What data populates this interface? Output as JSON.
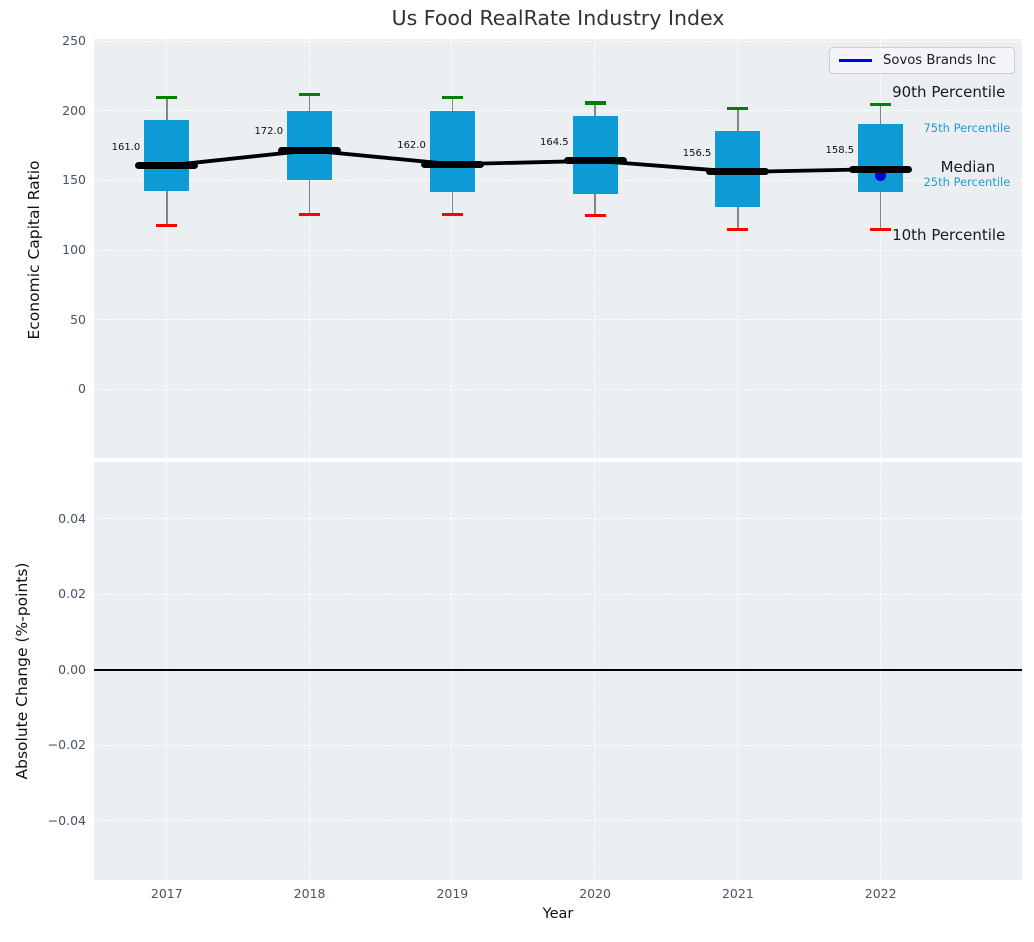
{
  "figure": {
    "title": "Us Food RealRate Industry Index"
  },
  "chart_data": [
    {
      "type": "boxplot",
      "panel": "top",
      "title": "Us Food RealRate Industry Index",
      "ylabel": "Economic Capital Ratio",
      "xlabel": "Year",
      "grid": "white-dashed",
      "legend_position": "upper right",
      "xlim": [
        2016.49,
        2022.99
      ],
      "ylim": [
        -49,
        252
      ],
      "yticks": [
        250,
        200,
        150,
        100,
        50,
        0
      ],
      "ytick_labels": [
        "250",
        "200",
        "150",
        "100",
        "50",
        "0"
      ],
      "years": [
        2017,
        2018,
        2019,
        2020,
        2021,
        2022
      ],
      "year_labels": [
        "2017",
        "2018",
        "2019",
        "2020",
        "2021",
        "2022"
      ],
      "boxes": [
        {
          "year": 2017,
          "p10": 118,
          "p25": 143,
          "median": 161.0,
          "p75": 194,
          "p90": 210,
          "median_label": "161.0"
        },
        {
          "year": 2018,
          "p10": 126,
          "p25": 151,
          "median": 172.0,
          "p75": 200,
          "p90": 212,
          "median_label": "172.0"
        },
        {
          "year": 2019,
          "p10": 126,
          "p25": 142,
          "median": 162.0,
          "p75": 200,
          "p90": 210,
          "median_label": "162.0"
        },
        {
          "year": 2020,
          "p10": 125,
          "p25": 141,
          "median": 164.5,
          "p75": 197,
          "p90": 206,
          "median_label": "164.5"
        },
        {
          "year": 2021,
          "p10": 115,
          "p25": 131,
          "median": 156.5,
          "p75": 186,
          "p90": 202,
          "median_label": "156.5"
        },
        {
          "year": 2022,
          "p10": 115,
          "p25": 142,
          "median": 158.5,
          "p75": 191,
          "p90": 205,
          "median_label": "158.5"
        }
      ],
      "legend": {
        "label": "Sovos Brands Inc",
        "line_color": "#0000ee"
      },
      "company_point": {
        "name": "Sovos Brands Inc",
        "year": 2022,
        "value": 154,
        "color": "#0000cc"
      },
      "annotations": [
        {
          "text": "90th Percentile",
          "year": 2022.08,
          "value": 214,
          "color": "#1a1a1a",
          "size": 15
        },
        {
          "text": "75th Percentile",
          "year": 2022.3,
          "value": 188,
          "color": "#1e9bd4",
          "size": 11.5
        },
        {
          "text": "Median",
          "year": 2022.42,
          "value": 160,
          "color": "#1a1a1a",
          "size": 15
        },
        {
          "text": "25th Percentile",
          "year": 2022.3,
          "value": 149,
          "color": "#1e9bd4",
          "size": 11.5
        },
        {
          "text": "10th Percentile",
          "year": 2022.08,
          "value": 111,
          "color": "#1a1a1a",
          "size": 15
        }
      ],
      "colors": {
        "box_fill": "#0c9bd4",
        "whisker": "#858585",
        "cap_top": "#008000",
        "cap_bottom": "#ff0000",
        "median": "#000000",
        "panel_bg": "#ebeff1",
        "tick_label": "#44546a"
      }
    },
    {
      "type": "line",
      "panel": "bottom",
      "ylabel": "Absolute Change (%-points)",
      "xlabel": "Year",
      "grid": "white-dashed",
      "xlim": [
        2016.49,
        2022.99
      ],
      "ylim": [
        -0.0556,
        0.0552
      ],
      "yticks": [
        0.04,
        0.02,
        0.0,
        -0.02,
        -0.04
      ],
      "ytick_labels": [
        "0.04",
        "0.02",
        "0.00",
        "−0.02",
        "−0.04"
      ],
      "zero_line": true,
      "series": []
    }
  ]
}
